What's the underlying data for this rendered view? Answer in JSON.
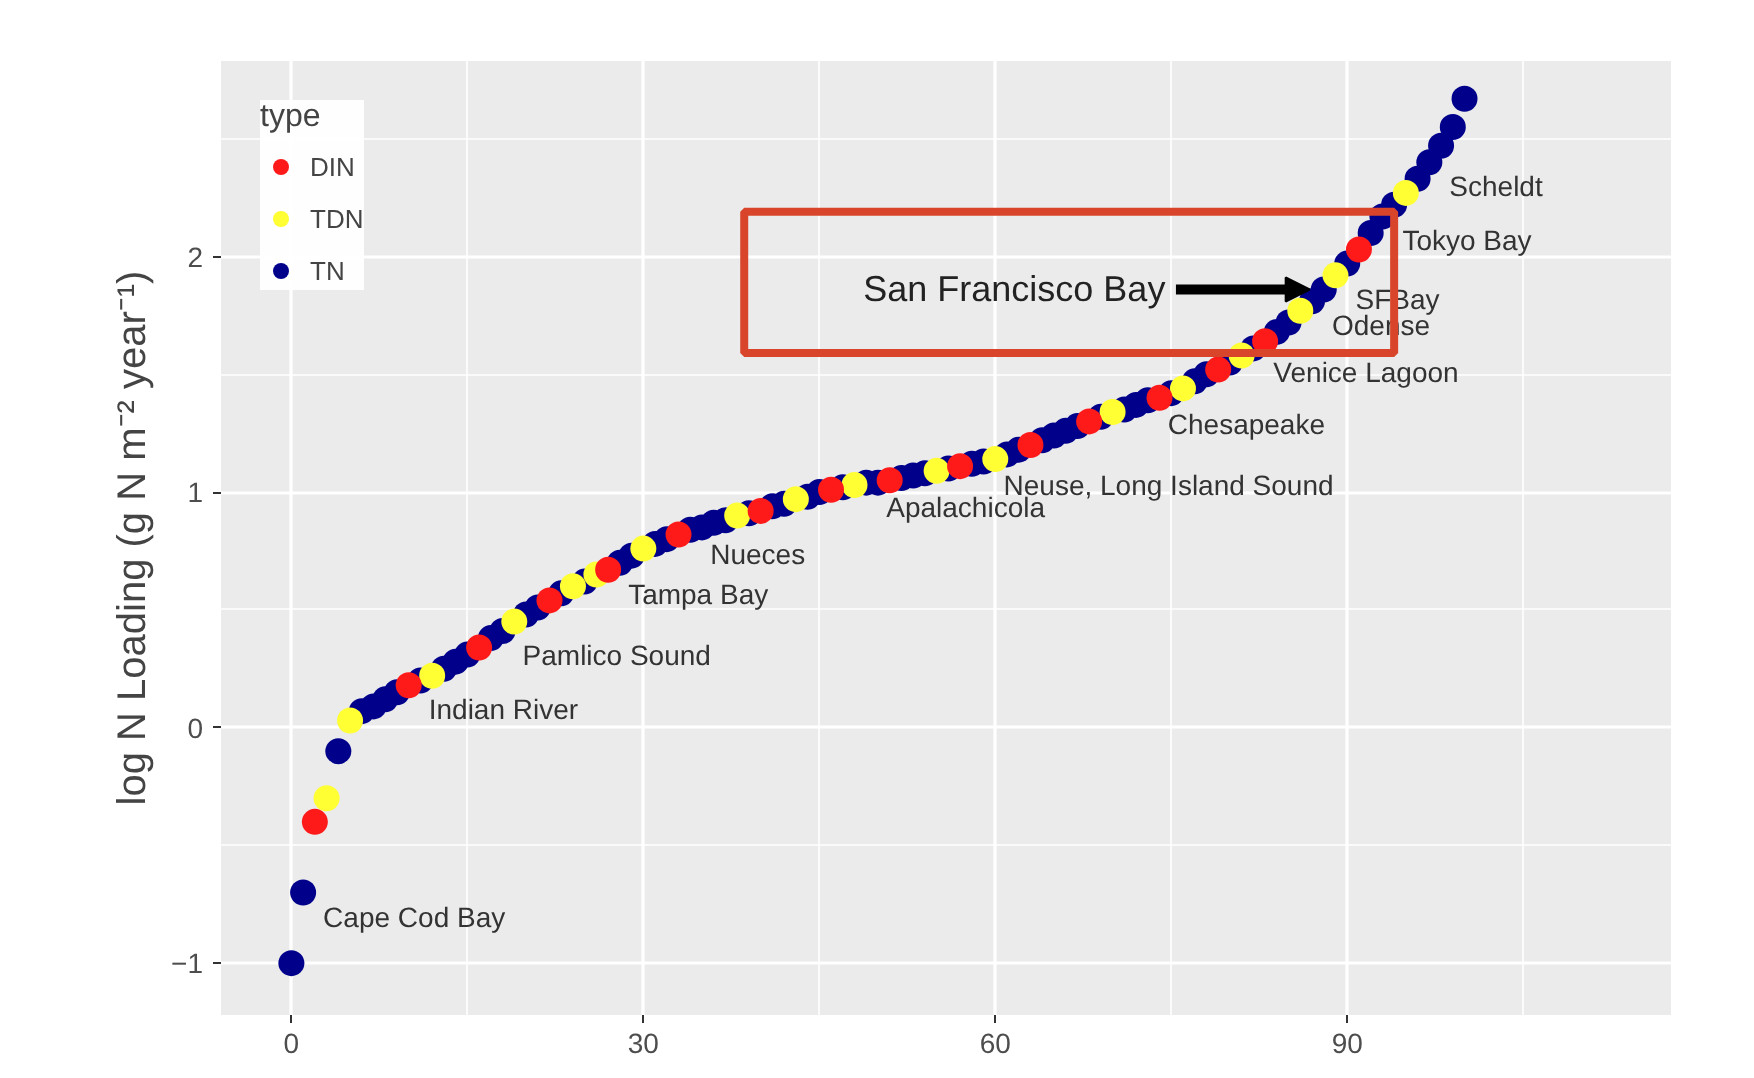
{
  "chart_data": {
    "type": "scatter",
    "ylabel": "log N Loading (g N m⁻² year⁻¹)",
    "legend_title": "type",
    "legend": "top left",
    "grid": true,
    "marker": "circle",
    "xlim": [
      -6,
      117.6
    ],
    "ylim": [
      -1.22,
      2.83
    ],
    "xticks": [
      0,
      30,
      60,
      90
    ],
    "yticks": [
      -1,
      0,
      1,
      2
    ],
    "series": [
      {
        "name": "TN",
        "color": "#00008b",
        "x": [
          0,
          1,
          4,
          6,
          7,
          8,
          9,
          11,
          13,
          14,
          15,
          17,
          18,
          20,
          21,
          23,
          25,
          28,
          29,
          31,
          32,
          34,
          35,
          36,
          37,
          39,
          41,
          42,
          44,
          45,
          47,
          49,
          50,
          52,
          53,
          54,
          56,
          58,
          59,
          61,
          62,
          64,
          65,
          66,
          67,
          69,
          71,
          72,
          73,
          75,
          77,
          78,
          80,
          82,
          84,
          85,
          87,
          88,
          90,
          92,
          93,
          94,
          96,
          97,
          98,
          99,
          100
        ],
        "values": [
          -1.0,
          -0.7,
          -0.1,
          0.07,
          0.09,
          0.12,
          0.15,
          0.2,
          0.25,
          0.28,
          0.31,
          0.38,
          0.41,
          0.48,
          0.51,
          0.57,
          0.62,
          0.7,
          0.73,
          0.78,
          0.8,
          0.84,
          0.85,
          0.87,
          0.88,
          0.91,
          0.94,
          0.95,
          0.98,
          1.0,
          1.02,
          1.04,
          1.04,
          1.06,
          1.07,
          1.08,
          1.1,
          1.12,
          1.13,
          1.16,
          1.18,
          1.22,
          1.24,
          1.26,
          1.28,
          1.32,
          1.35,
          1.37,
          1.39,
          1.42,
          1.47,
          1.5,
          1.55,
          1.61,
          1.68,
          1.72,
          1.81,
          1.86,
          1.97,
          2.1,
          2.17,
          2.22,
          2.33,
          2.4,
          2.47,
          2.55,
          2.67
        ]
      },
      {
        "name": "TDN",
        "color": "#ffff33",
        "x": [
          3,
          5,
          12,
          19,
          24,
          26,
          30,
          38,
          43,
          48,
          55,
          60,
          70,
          76,
          81,
          86,
          89,
          95
        ],
        "values": [
          -0.3,
          0.03,
          0.22,
          0.45,
          0.6,
          0.65,
          0.76,
          0.9,
          0.97,
          1.03,
          1.09,
          1.14,
          1.34,
          1.44,
          1.58,
          1.77,
          1.92,
          2.27
        ]
      },
      {
        "name": "DIN",
        "color": "#ff1a1a",
        "x": [
          2,
          10,
          16,
          22,
          27,
          33,
          40,
          46,
          51,
          57,
          63,
          68,
          74,
          79,
          83,
          91
        ],
        "values": [
          -0.4,
          0.18,
          0.34,
          0.54,
          0.67,
          0.82,
          0.92,
          1.01,
          1.05,
          1.11,
          1.2,
          1.3,
          1.4,
          1.52,
          1.64,
          2.03
        ]
      }
    ],
    "annotations": [
      {
        "text": "Cape Cod Bay",
        "x": 1,
        "y": -0.7
      },
      {
        "text": "Indian River",
        "x": 10,
        "y": 0.18
      },
      {
        "text": "Pamlico Sound",
        "x": 18,
        "y": 0.41
      },
      {
        "text": "Tampa Bay",
        "x": 27,
        "y": 0.67
      },
      {
        "text": "Nueces",
        "x": 34,
        "y": 0.84
      },
      {
        "text": "Apalachicola",
        "x": 49,
        "y": 1.04
      },
      {
        "text": "Neuse, Long Island Sound",
        "x": 59,
        "y": 1.13
      },
      {
        "text": "Chesapeake",
        "x": 73,
        "y": 1.39
      },
      {
        "text": "Venice Lagoon",
        "x": 82,
        "y": 1.61
      },
      {
        "text": "Odense",
        "x": 87,
        "y": 1.81
      },
      {
        "text": "SFBay",
        "x": 89,
        "y": 1.92
      },
      {
        "text": "Tokyo Bay",
        "x": 93,
        "y": 2.17
      },
      {
        "text": "Scheldt",
        "x": 97,
        "y": 2.4
      },
      {
        "text": "San Francisco Bay",
        "x": 88,
        "y": 1.86
      }
    ]
  }
}
